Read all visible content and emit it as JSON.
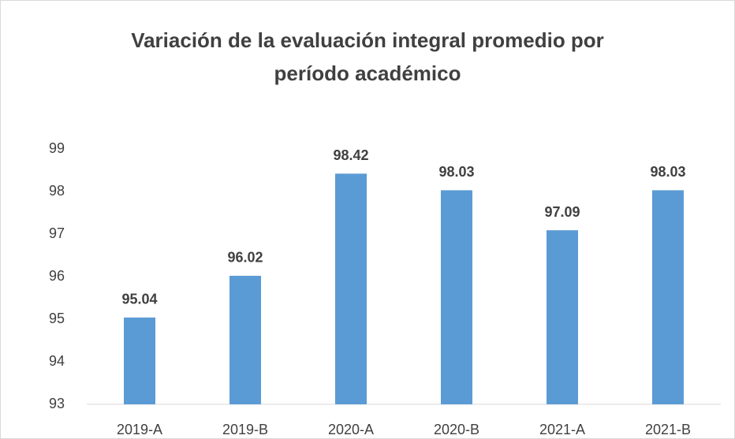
{
  "chart_data": {
    "type": "bar",
    "title": "Variación de la evaluación integral promedio por período académico",
    "categories": [
      "2019-A",
      "2019-B",
      "2020-A",
      "2020-B",
      "2021-A",
      "2021-B"
    ],
    "values": [
      95.04,
      96.02,
      98.42,
      98.03,
      97.09,
      98.03
    ],
    "color": "#5b9bd5",
    "ylim": [
      93,
      99
    ],
    "yticks": [
      93,
      94,
      95,
      96,
      97,
      98,
      99
    ],
    "grid": false
  }
}
